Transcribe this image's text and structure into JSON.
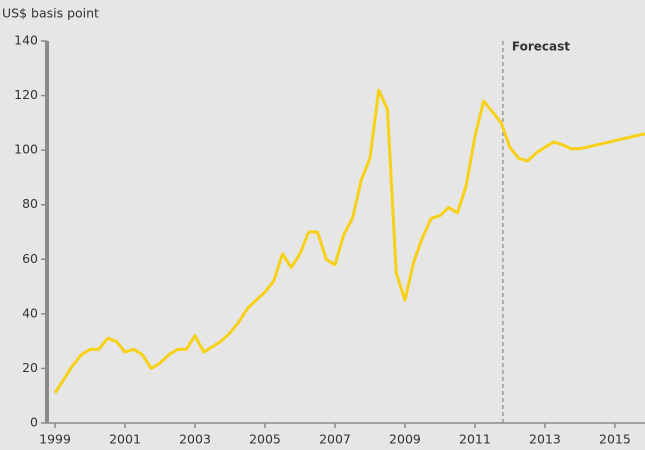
{
  "chart_data": {
    "type": "line",
    "y_axis_label": "US$ basis point",
    "annotation": {
      "label": "Forecast",
      "x": 2011.8
    },
    "x": [
      1999.0,
      1999.25,
      1999.5,
      1999.75,
      2000.0,
      2000.25,
      2000.5,
      2000.75,
      2001.0,
      2001.25,
      2001.5,
      2001.75,
      2002.0,
      2002.25,
      2002.5,
      2002.75,
      2003.0,
      2003.25,
      2003.5,
      2003.75,
      2004.0,
      2004.25,
      2004.5,
      2004.75,
      2005.0,
      2005.25,
      2005.5,
      2005.75,
      2006.0,
      2006.25,
      2006.5,
      2006.75,
      2007.0,
      2007.25,
      2007.5,
      2007.75,
      2008.0,
      2008.25,
      2008.5,
      2008.75,
      2009.0,
      2009.25,
      2009.5,
      2009.75,
      2010.0,
      2010.25,
      2010.5,
      2010.75,
      2011.0,
      2011.25,
      2011.5,
      2011.75,
      2012.0,
      2012.25,
      2012.5,
      2012.75,
      2013.0,
      2013.25,
      2013.5,
      2013.75,
      2014.0,
      2015.86
    ],
    "series": [
      {
        "name": "US$ basis point",
        "color": "#f8d117",
        "values": [
          11,
          16,
          21,
          25,
          27,
          27,
          31,
          30,
          26,
          27,
          25,
          20,
          22,
          25,
          27,
          27,
          32,
          26,
          28,
          30,
          33,
          37,
          42,
          45,
          48,
          52,
          62,
          57,
          62,
          70,
          70,
          60,
          58,
          69,
          75,
          89,
          97,
          122,
          115,
          55,
          45,
          59,
          68,
          75,
          76,
          79,
          77,
          87,
          105,
          118,
          114,
          110,
          101,
          97,
          96,
          99,
          101,
          103,
          102,
          100.5,
          100.5,
          106
        ]
      }
    ],
    "xlim": [
      1998.77,
      2015.86
    ],
    "xticks": [
      1999,
      2001,
      2003,
      2005,
      2007,
      2009,
      2011,
      2013,
      2015
    ],
    "ylim": [
      0,
      140
    ],
    "yticks": [
      0,
      20,
      40,
      60,
      80,
      100,
      120,
      140
    ],
    "grid": false
  }
}
